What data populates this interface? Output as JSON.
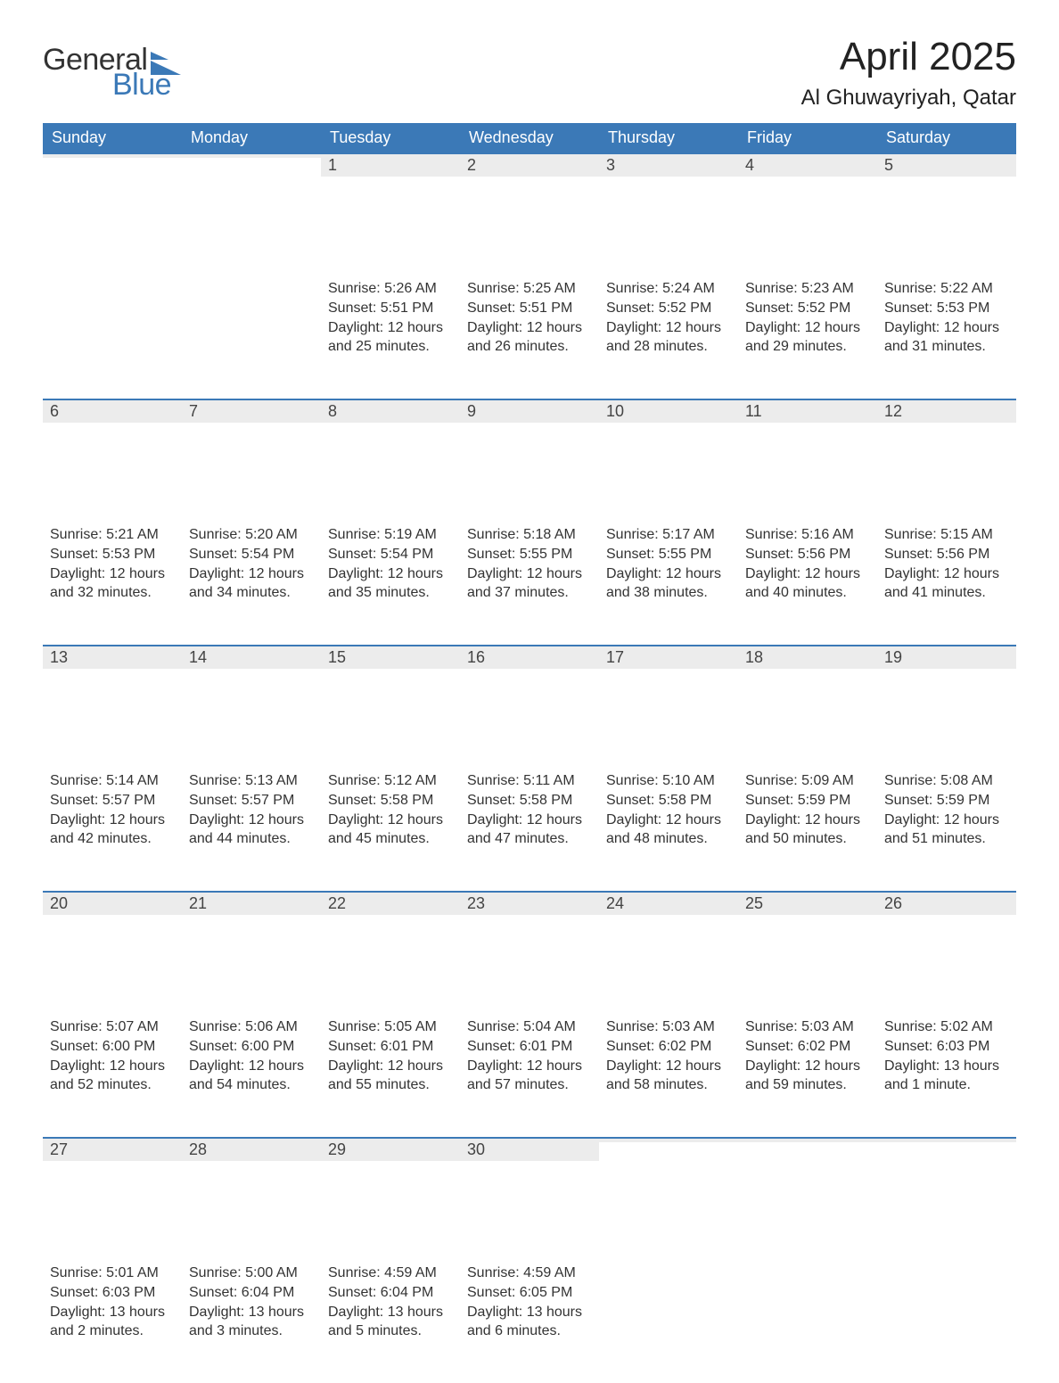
{
  "brand": {
    "text_general": "General",
    "text_blue": "Blue",
    "icon_color": "#3b79b7"
  },
  "title": {
    "month": "April 2025",
    "location": "Al Ghuwayriyah, Qatar"
  },
  "colors": {
    "header_bg": "#3b79b7",
    "header_text": "#ffffff",
    "daynum_bg": "#ececec",
    "week_border_top": "#3b79b7",
    "page_bg": "#ffffff",
    "text": "#333333"
  },
  "typography": {
    "month_title_fontsize": 44,
    "location_fontsize": 24,
    "weekday_fontsize": 18,
    "daynum_fontsize": 18,
    "body_fontsize": 16,
    "font_family": "Segoe UI"
  },
  "calendar": {
    "weekdays": [
      "Sunday",
      "Monday",
      "Tuesday",
      "Wednesday",
      "Thursday",
      "Friday",
      "Saturday"
    ],
    "weeks": [
      [
        {
          "day": "",
          "sunrise": "",
          "sunset": "",
          "daylight1": "",
          "daylight2": ""
        },
        {
          "day": "",
          "sunrise": "",
          "sunset": "",
          "daylight1": "",
          "daylight2": ""
        },
        {
          "day": "1",
          "sunrise": "Sunrise: 5:26 AM",
          "sunset": "Sunset: 5:51 PM",
          "daylight1": "Daylight: 12 hours",
          "daylight2": "and 25 minutes."
        },
        {
          "day": "2",
          "sunrise": "Sunrise: 5:25 AM",
          "sunset": "Sunset: 5:51 PM",
          "daylight1": "Daylight: 12 hours",
          "daylight2": "and 26 minutes."
        },
        {
          "day": "3",
          "sunrise": "Sunrise: 5:24 AM",
          "sunset": "Sunset: 5:52 PM",
          "daylight1": "Daylight: 12 hours",
          "daylight2": "and 28 minutes."
        },
        {
          "day": "4",
          "sunrise": "Sunrise: 5:23 AM",
          "sunset": "Sunset: 5:52 PM",
          "daylight1": "Daylight: 12 hours",
          "daylight2": "and 29 minutes."
        },
        {
          "day": "5",
          "sunrise": "Sunrise: 5:22 AM",
          "sunset": "Sunset: 5:53 PM",
          "daylight1": "Daylight: 12 hours",
          "daylight2": "and 31 minutes."
        }
      ],
      [
        {
          "day": "6",
          "sunrise": "Sunrise: 5:21 AM",
          "sunset": "Sunset: 5:53 PM",
          "daylight1": "Daylight: 12 hours",
          "daylight2": "and 32 minutes."
        },
        {
          "day": "7",
          "sunrise": "Sunrise: 5:20 AM",
          "sunset": "Sunset: 5:54 PM",
          "daylight1": "Daylight: 12 hours",
          "daylight2": "and 34 minutes."
        },
        {
          "day": "8",
          "sunrise": "Sunrise: 5:19 AM",
          "sunset": "Sunset: 5:54 PM",
          "daylight1": "Daylight: 12 hours",
          "daylight2": "and 35 minutes."
        },
        {
          "day": "9",
          "sunrise": "Sunrise: 5:18 AM",
          "sunset": "Sunset: 5:55 PM",
          "daylight1": "Daylight: 12 hours",
          "daylight2": "and 37 minutes."
        },
        {
          "day": "10",
          "sunrise": "Sunrise: 5:17 AM",
          "sunset": "Sunset: 5:55 PM",
          "daylight1": "Daylight: 12 hours",
          "daylight2": "and 38 minutes."
        },
        {
          "day": "11",
          "sunrise": "Sunrise: 5:16 AM",
          "sunset": "Sunset: 5:56 PM",
          "daylight1": "Daylight: 12 hours",
          "daylight2": "and 40 minutes."
        },
        {
          "day": "12",
          "sunrise": "Sunrise: 5:15 AM",
          "sunset": "Sunset: 5:56 PM",
          "daylight1": "Daylight: 12 hours",
          "daylight2": "and 41 minutes."
        }
      ],
      [
        {
          "day": "13",
          "sunrise": "Sunrise: 5:14 AM",
          "sunset": "Sunset: 5:57 PM",
          "daylight1": "Daylight: 12 hours",
          "daylight2": "and 42 minutes."
        },
        {
          "day": "14",
          "sunrise": "Sunrise: 5:13 AM",
          "sunset": "Sunset: 5:57 PM",
          "daylight1": "Daylight: 12 hours",
          "daylight2": "and 44 minutes."
        },
        {
          "day": "15",
          "sunrise": "Sunrise: 5:12 AM",
          "sunset": "Sunset: 5:58 PM",
          "daylight1": "Daylight: 12 hours",
          "daylight2": "and 45 minutes."
        },
        {
          "day": "16",
          "sunrise": "Sunrise: 5:11 AM",
          "sunset": "Sunset: 5:58 PM",
          "daylight1": "Daylight: 12 hours",
          "daylight2": "and 47 minutes."
        },
        {
          "day": "17",
          "sunrise": "Sunrise: 5:10 AM",
          "sunset": "Sunset: 5:58 PM",
          "daylight1": "Daylight: 12 hours",
          "daylight2": "and 48 minutes."
        },
        {
          "day": "18",
          "sunrise": "Sunrise: 5:09 AM",
          "sunset": "Sunset: 5:59 PM",
          "daylight1": "Daylight: 12 hours",
          "daylight2": "and 50 minutes."
        },
        {
          "day": "19",
          "sunrise": "Sunrise: 5:08 AM",
          "sunset": "Sunset: 5:59 PM",
          "daylight1": "Daylight: 12 hours",
          "daylight2": "and 51 minutes."
        }
      ],
      [
        {
          "day": "20",
          "sunrise": "Sunrise: 5:07 AM",
          "sunset": "Sunset: 6:00 PM",
          "daylight1": "Daylight: 12 hours",
          "daylight2": "and 52 minutes."
        },
        {
          "day": "21",
          "sunrise": "Sunrise: 5:06 AM",
          "sunset": "Sunset: 6:00 PM",
          "daylight1": "Daylight: 12 hours",
          "daylight2": "and 54 minutes."
        },
        {
          "day": "22",
          "sunrise": "Sunrise: 5:05 AM",
          "sunset": "Sunset: 6:01 PM",
          "daylight1": "Daylight: 12 hours",
          "daylight2": "and 55 minutes."
        },
        {
          "day": "23",
          "sunrise": "Sunrise: 5:04 AM",
          "sunset": "Sunset: 6:01 PM",
          "daylight1": "Daylight: 12 hours",
          "daylight2": "and 57 minutes."
        },
        {
          "day": "24",
          "sunrise": "Sunrise: 5:03 AM",
          "sunset": "Sunset: 6:02 PM",
          "daylight1": "Daylight: 12 hours",
          "daylight2": "and 58 minutes."
        },
        {
          "day": "25",
          "sunrise": "Sunrise: 5:03 AM",
          "sunset": "Sunset: 6:02 PM",
          "daylight1": "Daylight: 12 hours",
          "daylight2": "and 59 minutes."
        },
        {
          "day": "26",
          "sunrise": "Sunrise: 5:02 AM",
          "sunset": "Sunset: 6:03 PM",
          "daylight1": "Daylight: 13 hours",
          "daylight2": "and 1 minute."
        }
      ],
      [
        {
          "day": "27",
          "sunrise": "Sunrise: 5:01 AM",
          "sunset": "Sunset: 6:03 PM",
          "daylight1": "Daylight: 13 hours",
          "daylight2": "and 2 minutes."
        },
        {
          "day": "28",
          "sunrise": "Sunrise: 5:00 AM",
          "sunset": "Sunset: 6:04 PM",
          "daylight1": "Daylight: 13 hours",
          "daylight2": "and 3 minutes."
        },
        {
          "day": "29",
          "sunrise": "Sunrise: 4:59 AM",
          "sunset": "Sunset: 6:04 PM",
          "daylight1": "Daylight: 13 hours",
          "daylight2": "and 5 minutes."
        },
        {
          "day": "30",
          "sunrise": "Sunrise: 4:59 AM",
          "sunset": "Sunset: 6:05 PM",
          "daylight1": "Daylight: 13 hours",
          "daylight2": "and 6 minutes."
        },
        {
          "day": "",
          "sunrise": "",
          "sunset": "",
          "daylight1": "",
          "daylight2": ""
        },
        {
          "day": "",
          "sunrise": "",
          "sunset": "",
          "daylight1": "",
          "daylight2": ""
        },
        {
          "day": "",
          "sunrise": "",
          "sunset": "",
          "daylight1": "",
          "daylight2": ""
        }
      ]
    ]
  }
}
